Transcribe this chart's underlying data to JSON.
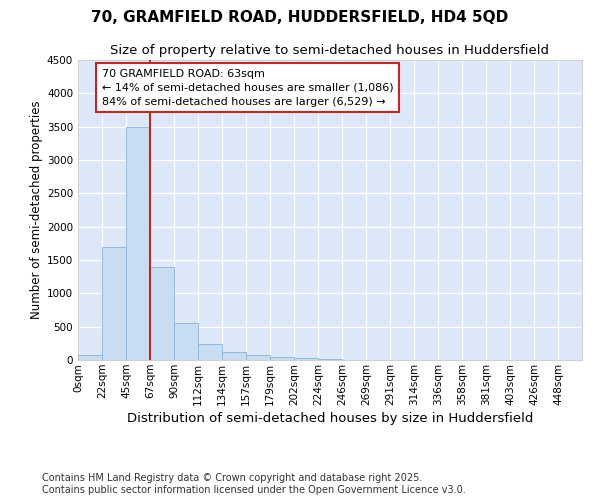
{
  "title1": "70, GRAMFIELD ROAD, HUDDERSFIELD, HD4 5QD",
  "title2": "Size of property relative to semi-detached houses in Huddersfield",
  "xlabel": "Distribution of semi-detached houses by size in Huddersfield",
  "ylabel": "Number of semi-detached properties",
  "bin_labels": [
    "0sqm",
    "22sqm",
    "45sqm",
    "67sqm",
    "90sqm",
    "112sqm",
    "134sqm",
    "157sqm",
    "179sqm",
    "202sqm",
    "224sqm",
    "246sqm",
    "269sqm",
    "291sqm",
    "314sqm",
    "336sqm",
    "358sqm",
    "381sqm",
    "403sqm",
    "426sqm",
    "448sqm"
  ],
  "bar_values": [
    75,
    1700,
    3500,
    1400,
    550,
    240,
    125,
    75,
    50,
    30,
    10,
    5,
    3,
    2,
    1,
    0,
    0,
    0,
    0,
    0,
    0
  ],
  "bar_color": "#c8ddf2",
  "bar_edge_color": "#8ab4d8",
  "vline_x": 3.0,
  "vline_color": "#cc2222",
  "annotation_text": "70 GRAMFIELD ROAD: 63sqm\n← 14% of semi-detached houses are smaller (1,086)\n84% of semi-detached houses are larger (6,529) →",
  "annotation_box_color": "white",
  "annotation_box_edge": "#cc2222",
  "ylim_max": 4500,
  "yticks": [
    0,
    500,
    1000,
    1500,
    2000,
    2500,
    3000,
    3500,
    4000,
    4500
  ],
  "background_color": "#dce8f8",
  "grid_color": "#ffffff",
  "footer": "Contains HM Land Registry data © Crown copyright and database right 2025.\nContains public sector information licensed under the Open Government Licence v3.0.",
  "title1_fontsize": 11,
  "title2_fontsize": 9.5,
  "xlabel_fontsize": 9.5,
  "ylabel_fontsize": 8.5,
  "annotation_fontsize": 8,
  "tick_fontsize": 7.5,
  "footer_fontsize": 7
}
